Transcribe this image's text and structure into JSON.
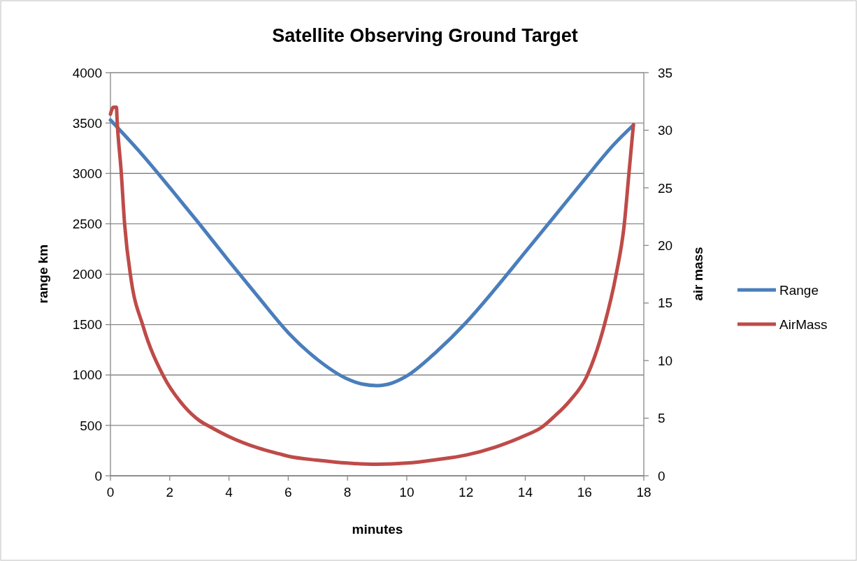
{
  "chart_data": {
    "type": "line",
    "title": "Satellite Observing Ground Target",
    "xlabel": "minutes",
    "ylabel": "range km",
    "y2label": "air mass",
    "xlim": [
      0,
      18
    ],
    "xticks": [
      0,
      2,
      4,
      6,
      8,
      10,
      12,
      14,
      16,
      18
    ],
    "ylim": [
      0,
      4000
    ],
    "yticks": [
      0,
      500,
      1000,
      1500,
      2000,
      2500,
      3000,
      3500,
      4000
    ],
    "y2lim": [
      0,
      35
    ],
    "y2ticks": [
      0,
      5,
      10,
      15,
      20,
      25,
      30,
      35
    ],
    "grid": "y",
    "legend": "right",
    "marker": "none",
    "line_style": "solid",
    "series": [
      {
        "name": "Range",
        "color": "#4a7ebb",
        "x": [
          0,
          1,
          2,
          3,
          4,
          5,
          6,
          7,
          8,
          8.5,
          9,
          9.5,
          10,
          11,
          12,
          13,
          14,
          15,
          16,
          17,
          17.65
        ],
        "values": [
          3530,
          3210,
          2860,
          2500,
          2130,
          1770,
          1420,
          1150,
          960,
          910,
          895,
          920,
          990,
          1230,
          1520,
          1860,
          2220,
          2580,
          2940,
          3290,
          3480
        ]
      },
      {
        "name": "AirMass",
        "color": "#be4b48",
        "axis": "y2",
        "x": [
          0,
          0.1,
          0.2,
          0.23,
          0.36,
          0.48,
          0.7,
          1.1,
          1.8,
          2.5,
          3,
          3.4,
          4,
          5,
          5.7,
          6,
          7,
          8,
          9,
          10,
          11,
          12,
          13,
          14,
          14.55,
          15,
          15.5,
          16.07,
          16.66,
          17.06,
          17.34,
          17.5,
          17.65
        ],
        "values": [
          31.4,
          32,
          32,
          30.6,
          26.5,
          21.8,
          17,
          13,
          8.6,
          6,
          4.8,
          4.2,
          3.4,
          2.4,
          1.9,
          1.7,
          1.35,
          1.1,
          1.0,
          1.1,
          1.4,
          1.8,
          2.5,
          3.5,
          4.2,
          5.2,
          6.5,
          8.6,
          13,
          17.4,
          21.8,
          26.3,
          30.5
        ]
      }
    ]
  }
}
